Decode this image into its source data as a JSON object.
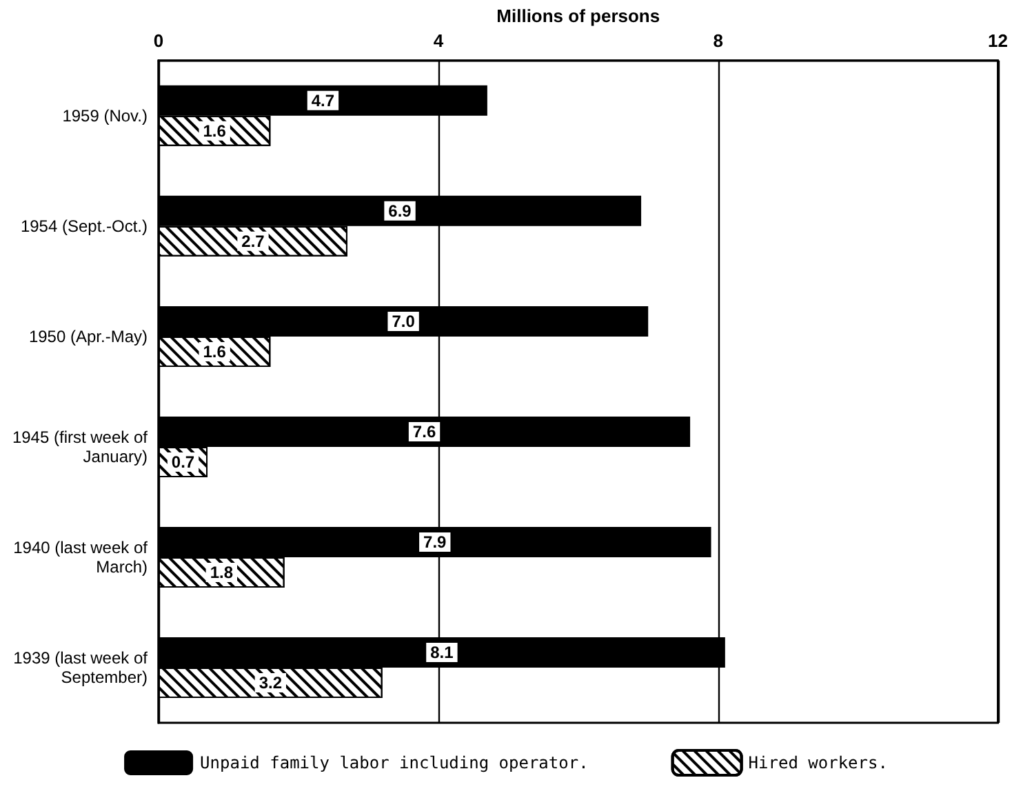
{
  "chart_data": {
    "type": "bar",
    "orientation": "horizontal",
    "xlabel": "Millions of persons",
    "categories": [
      "1959 (Nov.)",
      "1954 (Sept.-Oct.)",
      "1950 (Apr.-May)",
      "1945 (first week of January)",
      "1940 (last week of March)",
      "1939 (last week of September)"
    ],
    "series": [
      {
        "name": "Unpaid family labor including operator.",
        "color": "#000000",
        "values": [
          4.7,
          6.9,
          7.0,
          7.6,
          7.9,
          8.1
        ],
        "value_labels": [
          "4.7",
          "6.9",
          "7.0",
          "7.6",
          "7.9",
          "8.1"
        ]
      },
      {
        "name": "Hired workers.",
        "color": "#ffffff",
        "values": [
          1.6,
          2.7,
          1.6,
          0.7,
          1.8,
          3.2
        ],
        "value_labels": [
          "1.6",
          "2.7",
          "1.6",
          "0.7",
          "1.8",
          "3.2"
        ]
      }
    ],
    "xlim": [
      0,
      12
    ],
    "xticks": [
      0,
      4,
      8,
      12
    ],
    "grid": "x",
    "legend": "bottom"
  }
}
